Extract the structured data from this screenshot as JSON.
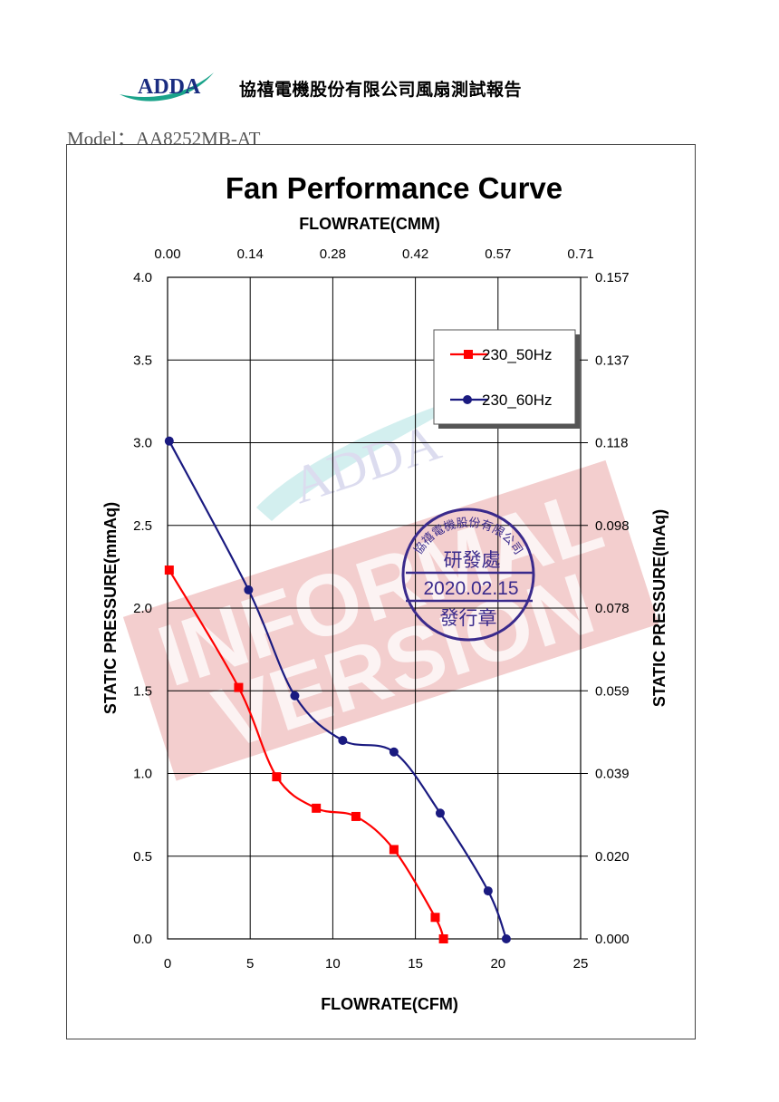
{
  "header": {
    "logo_text": "ADDA",
    "company": "協禧電機股份有限公司風扇測試報告",
    "model_label": "Model：",
    "model_value": "AA8252MB-AT"
  },
  "watermark": {
    "logo_text": "ADDA",
    "line1": "INFORMAL",
    "line2": "VERSION",
    "color": "#e8a6a6"
  },
  "stamp": {
    "top_text": "協禧電機股份有限公司",
    "dept": "研發處",
    "date": "2020.02.15",
    "bottom": "發行章",
    "color": "#3a2a8c"
  },
  "chart_data": {
    "type": "line",
    "title": "Fan Performance Curve",
    "xlabel": "FLOWRATE(CFM)",
    "xlabel_top": "FLOWRATE(CMM)",
    "ylabel": "STATIC PRESSURE(mmAq)",
    "ylabel_right": "STATIC PRESSURE(InAq)",
    "xlim": [
      0,
      25
    ],
    "ylim": [
      0,
      4
    ],
    "x_ticks": [
      "0",
      "5",
      "10",
      "15",
      "20",
      "25"
    ],
    "x_top_ticks": [
      "0.00",
      "0.14",
      "0.28",
      "0.42",
      "0.57",
      "0.71"
    ],
    "y_ticks": [
      "0.0",
      "0.5",
      "1.0",
      "1.5",
      "2.0",
      "2.5",
      "3.0",
      "3.5",
      "4.0"
    ],
    "y_right_ticks": [
      "0.000",
      "0.020",
      "0.039",
      "0.059",
      "0.078",
      "0.098",
      "0.118",
      "0.137",
      "0.157"
    ],
    "grid": true,
    "legend_position": "top-right",
    "series": [
      {
        "name": "230_50Hz",
        "color": "#ff0000",
        "marker": "square",
        "points": [
          [
            0.1,
            2.23
          ],
          [
            4.3,
            1.52
          ],
          [
            6.6,
            0.98
          ],
          [
            9.0,
            0.79
          ],
          [
            11.4,
            0.74
          ],
          [
            13.7,
            0.54
          ],
          [
            16.2,
            0.13
          ],
          [
            16.7,
            0.0
          ]
        ]
      },
      {
        "name": "230_60Hz",
        "color": "#1a1a80",
        "marker": "circle",
        "points": [
          [
            0.1,
            3.01
          ],
          [
            4.9,
            2.11
          ],
          [
            7.7,
            1.47
          ],
          [
            10.6,
            1.2
          ],
          [
            13.7,
            1.13
          ],
          [
            16.5,
            0.76
          ],
          [
            19.4,
            0.29
          ],
          [
            20.5,
            0.0
          ]
        ]
      }
    ]
  }
}
